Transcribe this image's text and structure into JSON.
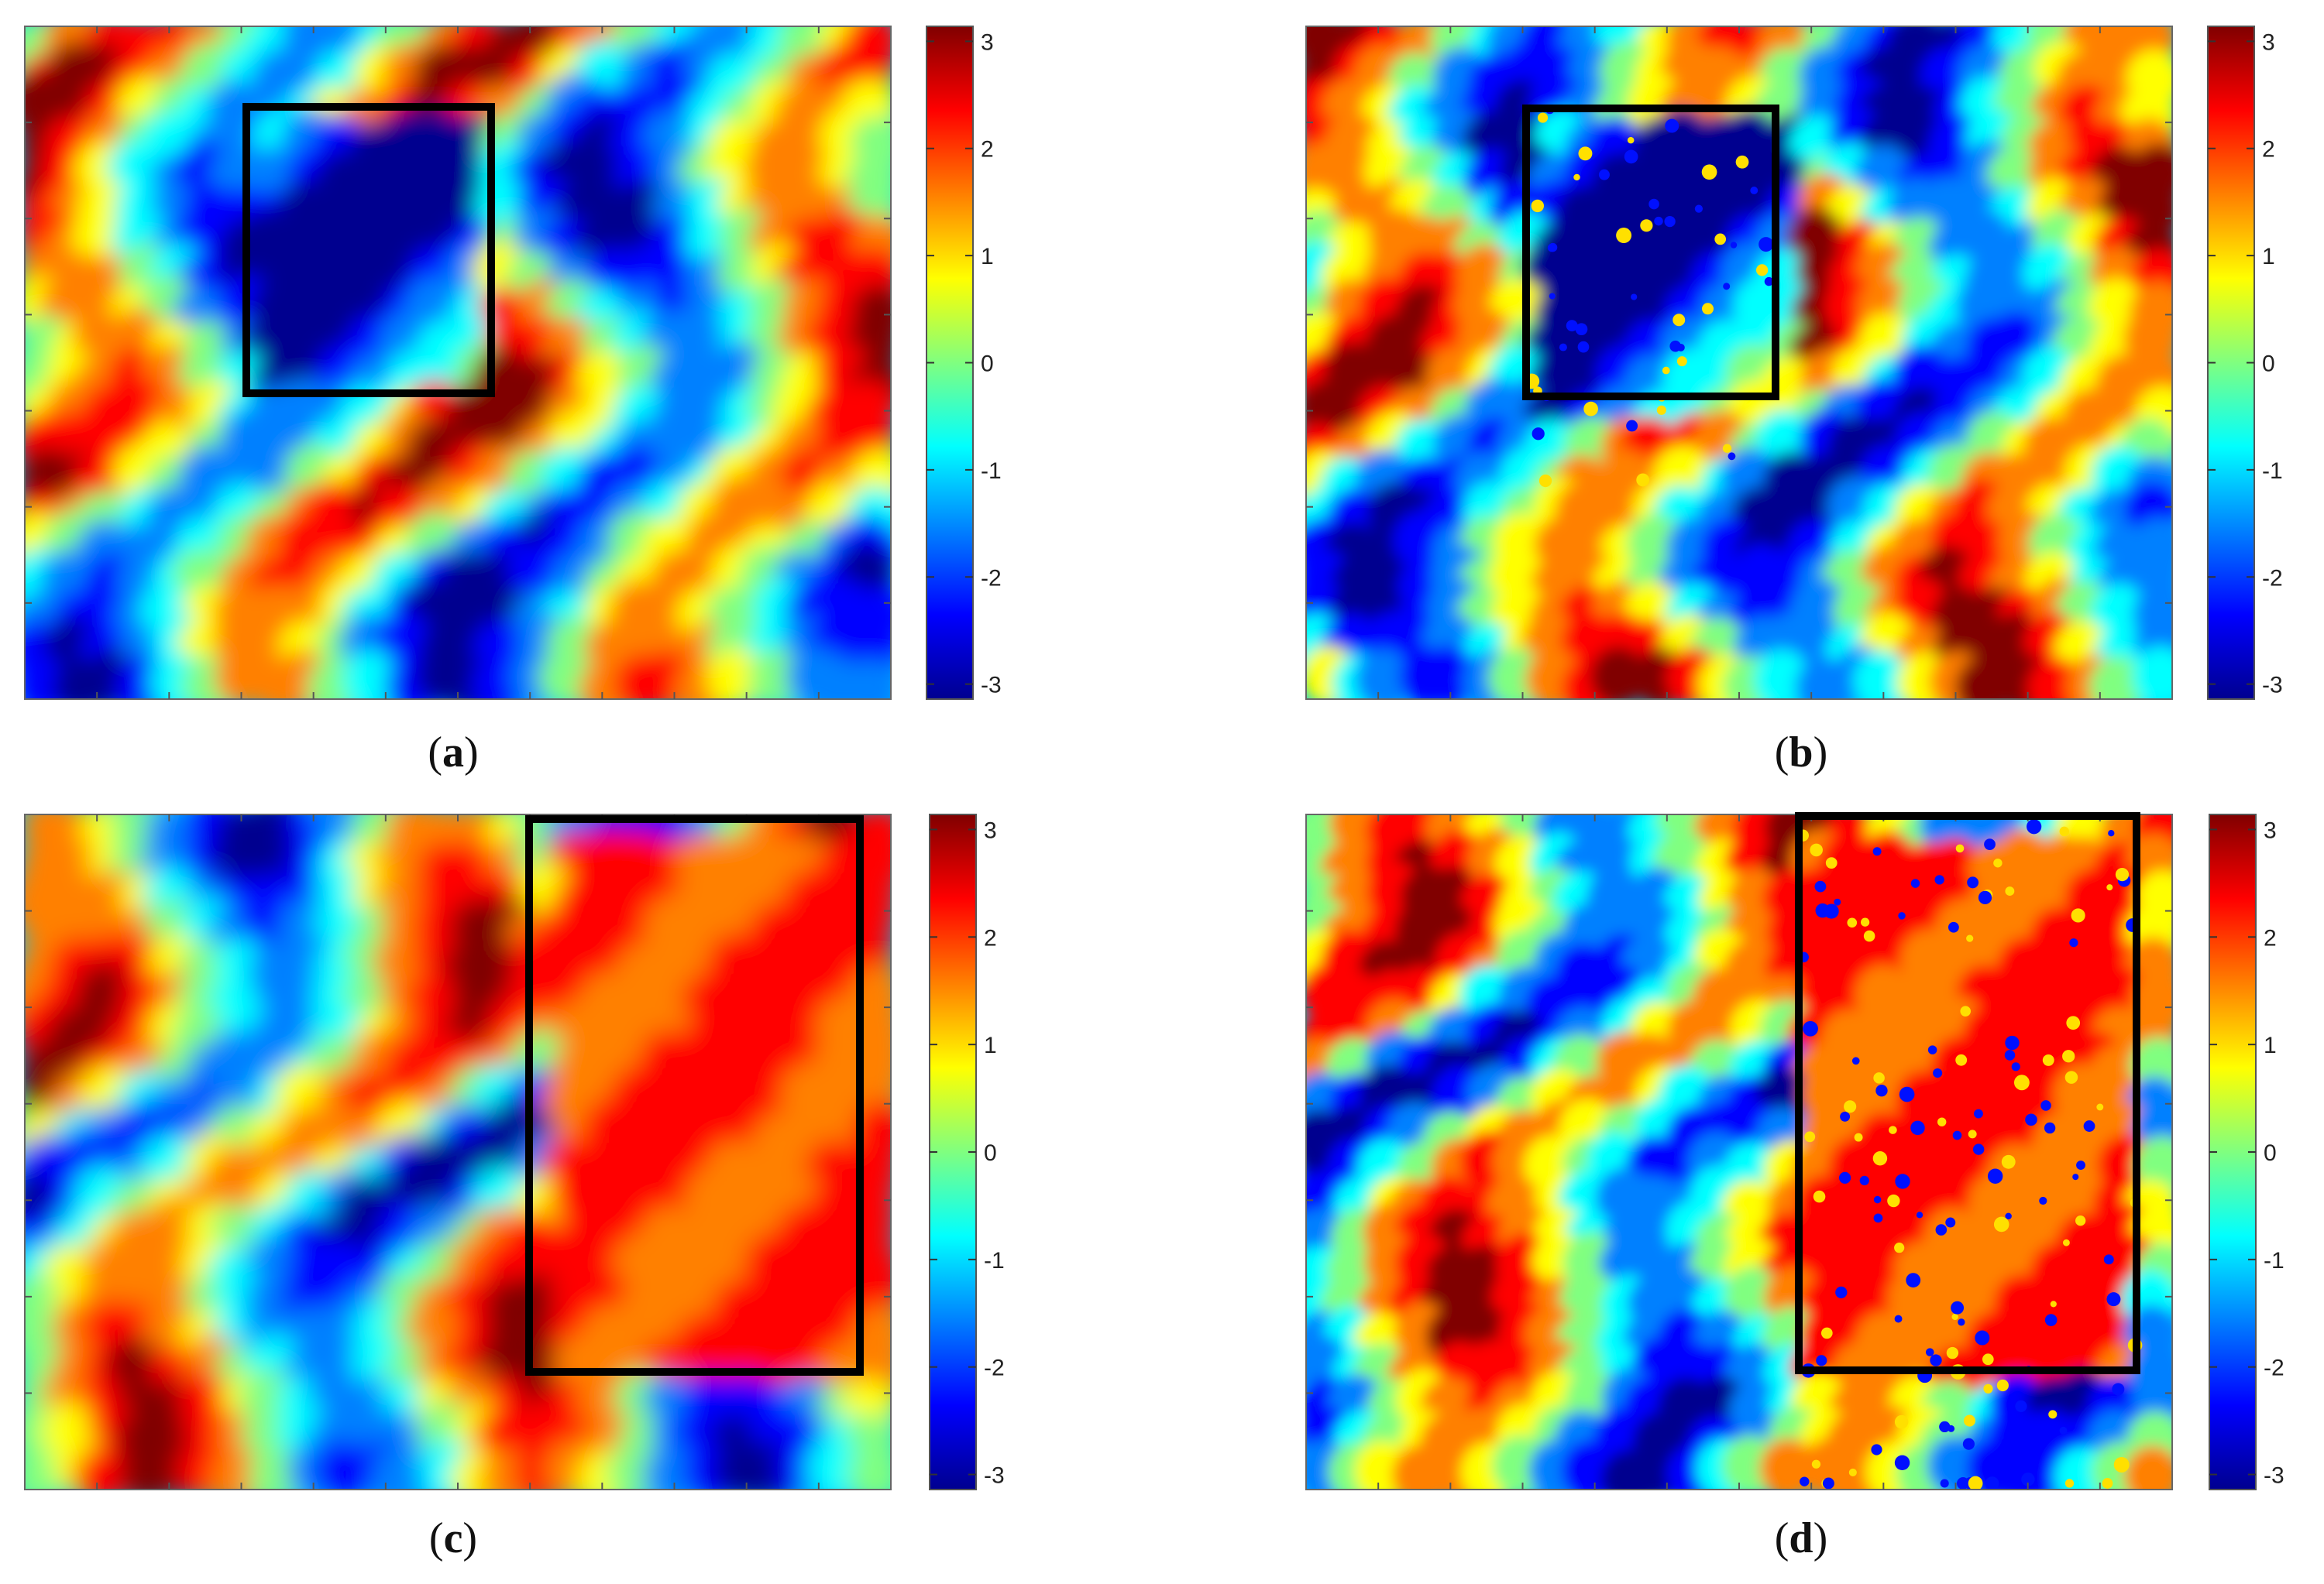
{
  "figure": {
    "panels": [
      {
        "label": "a",
        "caption_open": "(",
        "caption_close": ")"
      },
      {
        "label": "b",
        "caption_open": "(",
        "caption_close": ")"
      },
      {
        "label": "c",
        "caption_open": "(",
        "caption_close": ")"
      },
      {
        "label": "d",
        "caption_open": "(",
        "caption_close": ")"
      }
    ]
  },
  "chart_data": [
    {
      "type": "heatmap",
      "panel": "a",
      "title": "",
      "xlabel": "",
      "ylabel": "",
      "colormap": "jet",
      "colorbar": {
        "min": -3.14,
        "max": 3.14,
        "ticks": [
          3,
          2,
          1,
          0,
          -1,
          -2,
          -3
        ],
        "tick_labels": [
          "3",
          "2",
          "1",
          "0",
          "-1",
          "-2",
          "-3"
        ]
      },
      "annotation": "black rectangle highlighting region of interest",
      "grid": false
    },
    {
      "type": "heatmap",
      "panel": "b",
      "title": "",
      "xlabel": "",
      "ylabel": "",
      "colormap": "jet",
      "colorbar": {
        "min": -3.14,
        "max": 3.14,
        "ticks": [
          3,
          2,
          1,
          0,
          -1,
          -2,
          -3
        ],
        "tick_labels": [
          "3",
          "2",
          "1",
          "0",
          "-1",
          "-2",
          "-3"
        ]
      },
      "annotation": "black rectangle highlighting region of interest",
      "grid": false
    },
    {
      "type": "heatmap",
      "panel": "c",
      "title": "",
      "xlabel": "",
      "ylabel": "",
      "colormap": "jet",
      "colorbar": {
        "min": -3.14,
        "max": 3.14,
        "ticks": [
          3,
          2,
          1,
          0,
          -1,
          -2,
          -3
        ],
        "tick_labels": [
          "3",
          "2",
          "1",
          "0",
          "-1",
          "-2",
          "-3"
        ]
      },
      "annotation": "black rectangle highlighting region of interest",
      "grid": false
    },
    {
      "type": "heatmap",
      "panel": "d",
      "title": "",
      "xlabel": "",
      "ylabel": "",
      "colormap": "jet",
      "colorbar": {
        "min": -3.14,
        "max": 3.14,
        "ticks": [
          3,
          2,
          1,
          0,
          -1,
          -2,
          -3
        ],
        "tick_labels": [
          "3",
          "2",
          "1",
          "0",
          "-1",
          "-2",
          "-3"
        ]
      },
      "annotation": "black rectangle highlighting region of interest",
      "grid": false
    }
  ]
}
